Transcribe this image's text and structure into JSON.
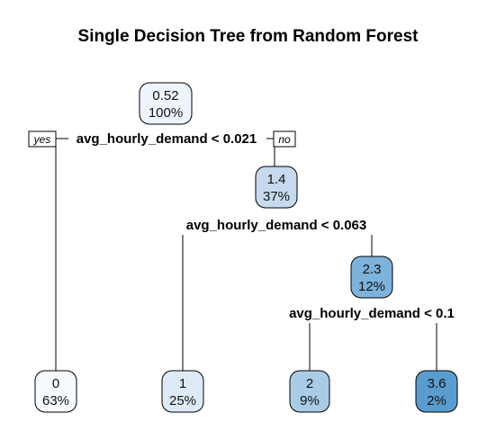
{
  "title": "Single Decision Tree from Random Forest",
  "tree": {
    "splits": [
      {
        "label": "avg_hourly_demand < 0.021"
      },
      {
        "label": "avg_hourly_demand < 0.063"
      },
      {
        "label": "avg_hourly_demand < 0.1"
      }
    ],
    "branch_labels": {
      "yes": "yes",
      "no": "no"
    },
    "nodes": [
      {
        "id": "root",
        "value": "0.52",
        "percent": "100%",
        "fill": "#eef4fb"
      },
      {
        "id": "n2",
        "value": "1.4",
        "percent": "37%",
        "fill": "#c6d9ee"
      },
      {
        "id": "n3",
        "value": "2.3",
        "percent": "12%",
        "fill": "#7db3db"
      },
      {
        "id": "leaf1",
        "value": "0",
        "percent": "63%",
        "fill": "#f7fbff"
      },
      {
        "id": "leaf2",
        "value": "1",
        "percent": "25%",
        "fill": "#deebf7"
      },
      {
        "id": "leaf3",
        "value": "2",
        "percent": "9%",
        "fill": "#a9cce6"
      },
      {
        "id": "leaf4",
        "value": "3.6",
        "percent": "2%",
        "fill": "#5b9ccf"
      }
    ]
  }
}
